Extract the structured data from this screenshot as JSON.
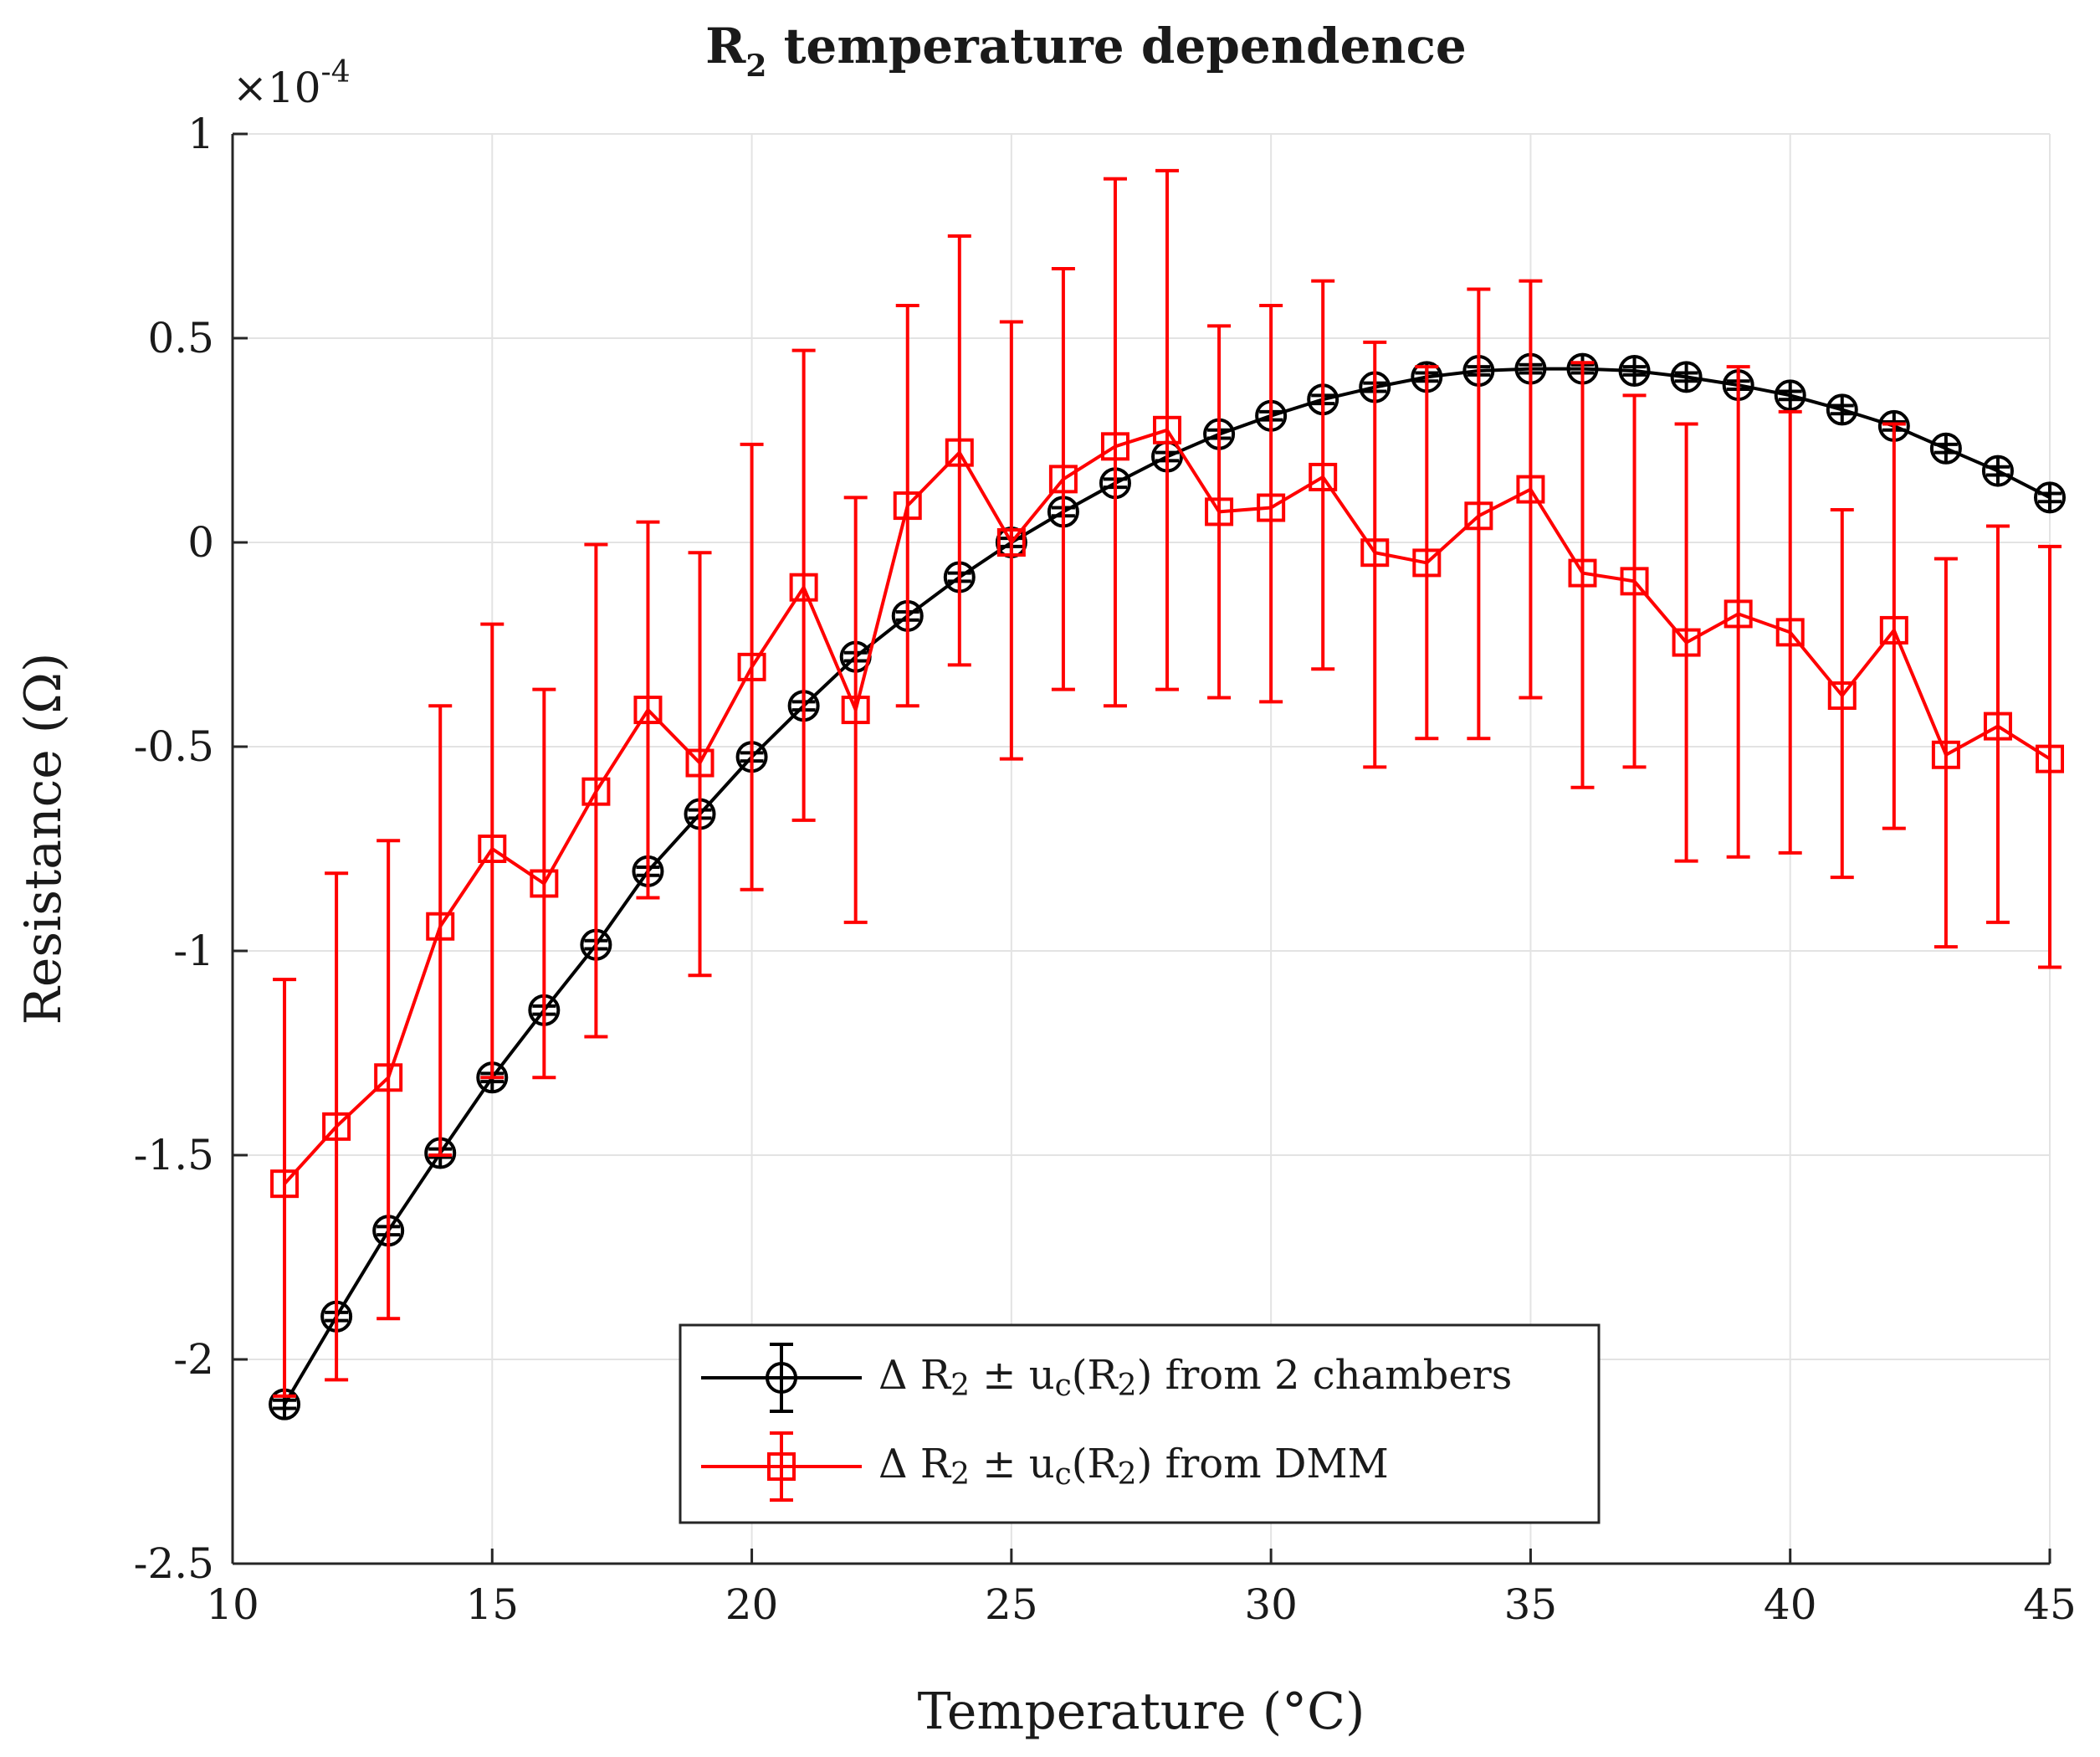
{
  "chart_data": {
    "type": "line",
    "title": "R",
    "title_subscript": "2",
    "title_suffix": " temperature dependence",
    "xlabel": "Temperature (°C)",
    "ylabel": "Resistance (Ω)",
    "y_multiplier_base": "×10",
    "y_multiplier_exp": "-4",
    "xlim": [
      10,
      45
    ],
    "ylim": [
      -2.5,
      1
    ],
    "grid": true,
    "legend_position": "bottom-center",
    "x_ticks": [
      10,
      15,
      20,
      25,
      30,
      35,
      40,
      45
    ],
    "x_tick_labels": [
      "10",
      "15",
      "20",
      "25",
      "30",
      "35",
      "40",
      "45"
    ],
    "y_ticks": [
      1,
      0.5,
      0,
      -0.5,
      -1,
      -1.5,
      -2,
      -2.5
    ],
    "y_tick_labels": [
      "1",
      "0.5",
      "0",
      "-0.5",
      "-1",
      "-1.5",
      "-2",
      "-2.5"
    ],
    "series": [
      {
        "name": "Δ R2 ± uc(R2) from 2 chambers",
        "legend": {
          "delta": "Δ R",
          "sub1": "2",
          "pm": " ± u",
          "sub2": "c",
          "open": "(R",
          "sub3": "2",
          "close": ") from 2 chambers"
        },
        "color": "#000000",
        "marker": "circle",
        "x": [
          11,
          12,
          13,
          14,
          15,
          16,
          17,
          18,
          19,
          20,
          21,
          22,
          23,
          24,
          25,
          26,
          27,
          28,
          29,
          30,
          31,
          32,
          33,
          34,
          35,
          36,
          37,
          38,
          39,
          40,
          41,
          42,
          43,
          44,
          45
        ],
        "y": [
          -2.11,
          -1.895,
          -1.685,
          -1.495,
          -1.31,
          -1.145,
          -0.985,
          -0.805,
          -0.665,
          -0.525,
          -0.4,
          -0.28,
          -0.18,
          -0.085,
          0,
          0.075,
          0.145,
          0.21,
          0.265,
          0.31,
          0.35,
          0.38,
          0.405,
          0.42,
          0.425,
          0.425,
          0.42,
          0.405,
          0.385,
          0.36,
          0.325,
          0.285,
          0.23,
          0.175,
          0.11
        ],
        "err": 0.01
      },
      {
        "name": "Δ R2 ± uc(R2) from DMM",
        "legend": {
          "delta": "Δ R",
          "sub1": "2",
          "pm": " ± u",
          "sub2": "c",
          "open": "(R",
          "sub3": "2",
          "close": ") from DMM"
        },
        "color": "#ff0000",
        "marker": "square",
        "x": [
          11,
          12,
          13,
          14,
          15,
          16,
          17,
          18,
          19,
          20,
          21,
          22,
          23,
          24,
          25,
          26,
          27,
          28,
          29,
          30,
          31,
          32,
          33,
          34,
          35,
          36,
          37,
          38,
          39,
          40,
          41,
          42,
          43,
          44,
          45
        ],
        "y": [
          -1.57,
          -1.43,
          -1.31,
          -0.94,
          -0.75,
          -0.835,
          -0.61,
          -0.41,
          -0.54,
          -0.305,
          -0.11,
          -0.41,
          0.09,
          0.22,
          0,
          0.155,
          0.235,
          0.275,
          0.075,
          0.085,
          0.16,
          -0.025,
          -0.05,
          0.065,
          0.13,
          -0.075,
          -0.095,
          -0.245,
          -0.175,
          -0.22,
          -0.375,
          -0.215,
          -0.52,
          -0.45,
          -0.53
        ],
        "err_low": [
          -2.09,
          -2.05,
          -1.9,
          -1.5,
          -1.31,
          -1.31,
          -1.21,
          -0.87,
          -1.06,
          -0.85,
          -0.68,
          -0.93,
          -0.4,
          -0.3,
          -0.53,
          -0.36,
          -0.4,
          -0.36,
          -0.38,
          -0.39,
          -0.31,
          -0.55,
          -0.48,
          -0.48,
          -0.38,
          -0.6,
          -0.55,
          -0.78,
          -0.77,
          -0.76,
          -0.82,
          -0.7,
          -0.99,
          -0.93,
          -1.04
        ],
        "err_high": [
          -1.07,
          -0.81,
          -0.73,
          -0.4,
          -0.2,
          -0.36,
          -0.005,
          0.05,
          -0.025,
          0.24,
          0.47,
          0.11,
          0.58,
          0.75,
          0.54,
          0.67,
          0.89,
          0.91,
          0.53,
          0.58,
          0.64,
          0.49,
          0.43,
          0.62,
          0.64,
          0.44,
          0.36,
          0.29,
          0.43,
          0.32,
          0.08,
          0.29,
          -0.04,
          0.04,
          -0.01
        ]
      }
    ]
  }
}
